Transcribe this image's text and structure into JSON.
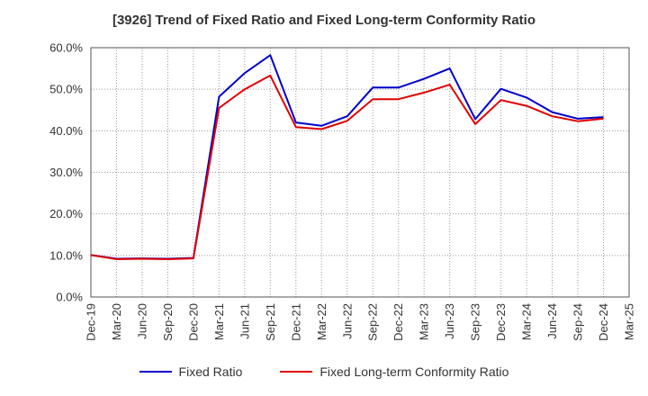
{
  "chart_data": {
    "type": "line",
    "title": "[3926]  Trend of Fixed Ratio and Fixed Long-term Conformity Ratio",
    "xlabel": "",
    "ylabel": "",
    "categories": [
      "Dec-19",
      "Mar-20",
      "Jun-20",
      "Sep-20",
      "Dec-20",
      "Mar-21",
      "Jun-21",
      "Sep-21",
      "Dec-21",
      "Mar-22",
      "Jun-22",
      "Sep-22",
      "Dec-22",
      "Mar-23",
      "Jun-23",
      "Sep-23",
      "Dec-23",
      "Mar-24",
      "Jun-24",
      "Sep-24",
      "Dec-24",
      "Mar-25"
    ],
    "y_ticks": [
      "0.0%",
      "10.0%",
      "20.0%",
      "30.0%",
      "40.0%",
      "50.0%",
      "60.0%"
    ],
    "ylim": [
      0,
      60
    ],
    "grid": true,
    "legend_position": "bottom",
    "series": [
      {
        "name": "Fixed Ratio",
        "color": "#0000cc",
        "values": [
          10.1,
          9.2,
          9.3,
          9.2,
          9.4,
          48.2,
          53.9,
          58.2,
          42.0,
          41.2,
          43.5,
          50.4,
          50.4,
          52.5,
          55.0,
          42.8,
          50.1,
          48.0,
          44.5,
          42.9,
          43.3,
          null
        ]
      },
      {
        "name": "Fixed Long-term Conformity Ratio",
        "color": "#e00000",
        "values": [
          10.1,
          9.1,
          9.2,
          9.1,
          9.3,
          45.5,
          50.0,
          53.3,
          40.9,
          40.4,
          42.4,
          47.6,
          47.6,
          49.2,
          51.1,
          41.6,
          47.4,
          46.0,
          43.5,
          42.3,
          42.9,
          null
        ]
      }
    ]
  }
}
